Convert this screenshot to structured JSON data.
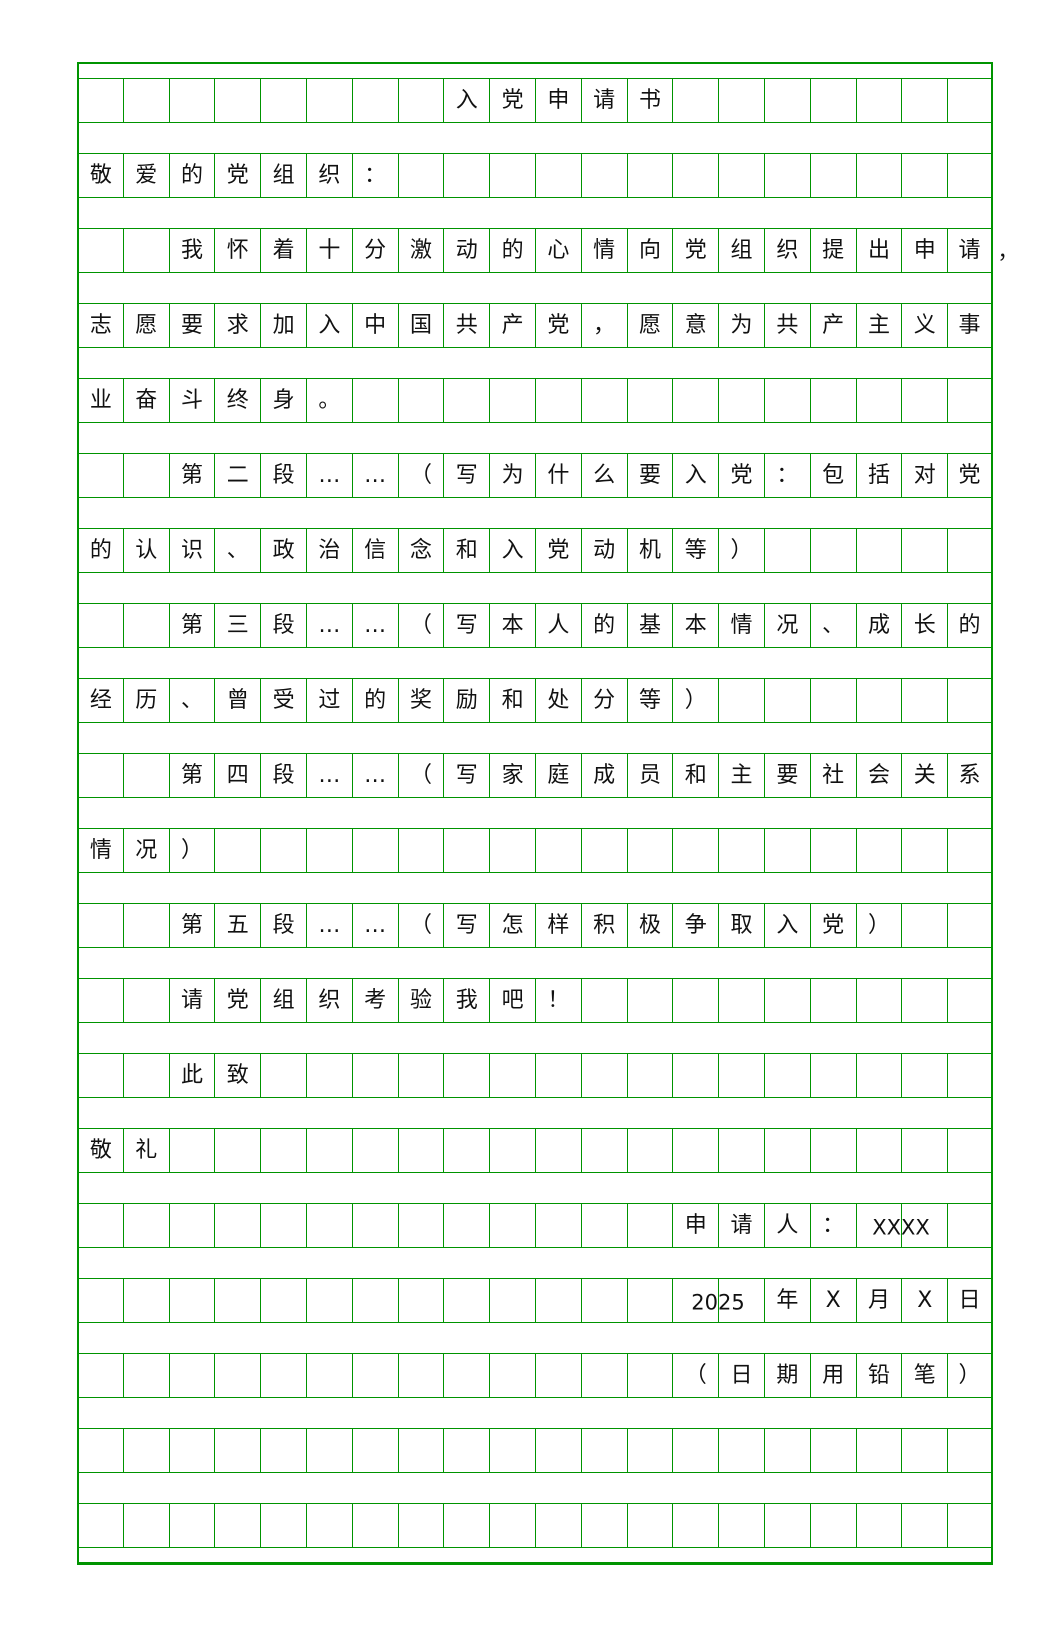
{
  "document": {
    "grid_color": "#009400",
    "columns": 20,
    "rows": [
      [
        "",
        "",
        "",
        "",
        "",
        "",
        "",
        "",
        "入",
        "党",
        "申",
        "请",
        "书",
        "",
        "",
        "",
        "",
        "",
        "",
        ""
      ],
      [
        "敬",
        "爱",
        "的",
        "党",
        "组",
        "织",
        "：",
        "",
        "",
        "",
        "",
        "",
        "",
        "",
        "",
        "",
        "",
        "",
        "",
        ""
      ],
      [
        "",
        "",
        "我",
        "怀",
        "着",
        "十",
        "分",
        "激",
        "动",
        "的",
        "心",
        "情",
        "向",
        "党",
        "组",
        "织",
        "提",
        "出",
        "申",
        "请"
      ],
      [
        "志",
        "愿",
        "要",
        "求",
        "加",
        "入",
        "中",
        "国",
        "共",
        "产",
        "党",
        "，",
        "愿",
        "意",
        "为",
        "共",
        "产",
        "主",
        "义",
        "事"
      ],
      [
        "业",
        "奋",
        "斗",
        "终",
        "身",
        "。",
        "",
        "",
        "",
        "",
        "",
        "",
        "",
        "",
        "",
        "",
        "",
        "",
        "",
        ""
      ],
      [
        "",
        "",
        "第",
        "二",
        "段",
        "…",
        "…",
        "（",
        "写",
        "为",
        "什",
        "么",
        "要",
        "入",
        "党",
        "：",
        "包",
        "括",
        "对",
        "党"
      ],
      [
        "的",
        "认",
        "识",
        "、",
        "政",
        "治",
        "信",
        "念",
        "和",
        "入",
        "党",
        "动",
        "机",
        "等",
        "）",
        "",
        "",
        "",
        "",
        ""
      ],
      [
        "",
        "",
        "第",
        "三",
        "段",
        "…",
        "…",
        "（",
        "写",
        "本",
        "人",
        "的",
        "基",
        "本",
        "情",
        "况",
        "、",
        "成",
        "长",
        "的"
      ],
      [
        "经",
        "历",
        "、",
        "曾",
        "受",
        "过",
        "的",
        "奖",
        "励",
        "和",
        "处",
        "分",
        "等",
        "）",
        "",
        "",
        "",
        "",
        "",
        ""
      ],
      [
        "",
        "",
        "第",
        "四",
        "段",
        "…",
        "…",
        "（",
        "写",
        "家",
        "庭",
        "成",
        "员",
        "和",
        "主",
        "要",
        "社",
        "会",
        "关",
        "系"
      ],
      [
        "情",
        "况",
        "）",
        "",
        "",
        "",
        "",
        "",
        "",
        "",
        "",
        "",
        "",
        "",
        "",
        "",
        "",
        "",
        "",
        ""
      ],
      [
        "",
        "",
        "第",
        "五",
        "段",
        "…",
        "…",
        "（",
        "写",
        "怎",
        "样",
        "积",
        "极",
        "争",
        "取",
        "入",
        "党",
        "）",
        "",
        ""
      ],
      [
        "",
        "",
        "请",
        "党",
        "组",
        "织",
        "考",
        "验",
        "我",
        "吧",
        "！",
        "",
        "",
        "",
        "",
        "",
        "",
        "",
        "",
        ""
      ],
      [
        "",
        "",
        "此",
        "致",
        "",
        "",
        "",
        "",
        "",
        "",
        "",
        "",
        "",
        "",
        "",
        "",
        "",
        "",
        "",
        ""
      ],
      [
        "敬",
        "礼",
        "",
        "",
        "",
        "",
        "",
        "",
        "",
        "",
        "",
        "",
        "",
        "",
        "",
        "",
        "",
        "",
        "",
        ""
      ],
      [
        "",
        "",
        "",
        "",
        "",
        "",
        "",
        "",
        "",
        "",
        "",
        "",
        "",
        "申",
        "请",
        "人",
        "：",
        "",
        "",
        ""
      ],
      [
        "",
        "",
        "",
        "",
        "",
        "",
        "",
        "",
        "",
        "",
        "",
        "",
        "",
        "",
        "",
        "年",
        "X",
        "月",
        "X",
        "日"
      ],
      [
        "",
        "",
        "",
        "",
        "",
        "",
        "",
        "",
        "",
        "",
        "",
        "",
        "",
        "（",
        "日",
        "期",
        "用",
        "铅",
        "笔",
        "）"
      ],
      [
        "",
        "",
        "",
        "",
        "",
        "",
        "",
        "",
        "",
        "",
        "",
        "",
        "",
        "",
        "",
        "",
        "",
        "",
        "",
        ""
      ],
      [
        "",
        "",
        "",
        "",
        "",
        "",
        "",
        "",
        "",
        "",
        "",
        "",
        "",
        "",
        "",
        "",
        "",
        "",
        "",
        ""
      ]
    ],
    "overflow_comma": "，",
    "applicant_name": "XXXX",
    "year": "2025"
  }
}
